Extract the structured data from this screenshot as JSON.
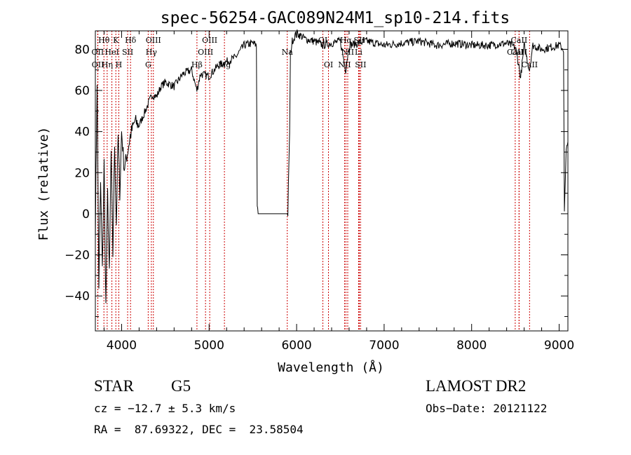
{
  "chart_data": {
    "type": "line",
    "title": "spec-56254-GAC089N24M1_sp10-214.fits",
    "xlabel": "Wavelength (Å)",
    "ylabel": "Flux (relative)",
    "xlim": [
      3700,
      9100
    ],
    "ylim": [
      -57,
      89
    ],
    "xticks": [
      4000,
      5000,
      6000,
      7000,
      8000,
      9000
    ],
    "yticks": [
      -40,
      -20,
      0,
      20,
      40,
      60,
      80
    ],
    "ytick_labels": [
      "−40",
      "−20",
      "0",
      "20",
      "40",
      "60",
      "80"
    ],
    "grid": false,
    "series": [
      {
        "color": "#000000",
        "x": [
          3700,
          3720,
          3740,
          3760,
          3780,
          3800,
          3820,
          3840,
          3860,
          3880,
          3900,
          3920,
          3940,
          3960,
          3980,
          4000,
          4030,
          4060,
          4100,
          4150,
          4200,
          4250,
          4300,
          4350,
          4400,
          4450,
          4500,
          4600,
          4700,
          4800,
          4860,
          4900,
          5000,
          5100,
          5200,
          5300,
          5400,
          5500,
          5540,
          5550,
          5560,
          5580,
          5700,
          5800,
          5900,
          5920,
          5930,
          5950,
          6000,
          6100,
          6200,
          6300,
          6400,
          6500,
          6560,
          6600,
          6700,
          6800,
          6900,
          7000,
          7200,
          7400,
          7600,
          7800,
          8000,
          8200,
          8400,
          8500,
          8540,
          8560,
          8600,
          8660,
          8700,
          8800,
          8900,
          9000,
          9050,
          9060,
          9080,
          9100
        ],
        "y": [
          -10,
          65,
          -35,
          15,
          -28,
          25,
          -45,
          10,
          -30,
          30,
          -20,
          34,
          -5,
          38,
          10,
          40,
          22,
          28,
          38,
          45,
          43,
          48,
          53,
          58,
          57,
          62,
          64,
          62,
          68,
          70,
          60,
          68,
          67,
          72,
          74,
          76,
          82,
          83,
          82,
          5,
          0,
          0,
          0,
          0,
          0,
          40,
          78,
          84,
          88,
          85,
          84,
          82,
          83,
          84,
          70,
          82,
          83,
          84,
          83,
          82,
          83,
          84,
          82,
          83,
          82,
          82,
          83,
          81,
          72,
          66,
          82,
          70,
          82,
          80,
          81,
          82,
          80,
          0,
          30,
          35
        ]
      }
    ],
    "line_ids": [
      {
        "label": "Hθ",
        "x": 3798,
        "row": 0
      },
      {
        "label": "K",
        "x": 3934,
        "row": 0
      },
      {
        "label": "Hδ",
        "x": 4102,
        "row": 0
      },
      {
        "label": "OIII",
        "x": 4363,
        "row": 0
      },
      {
        "label": "OIII",
        "x": 5007,
        "row": 0
      },
      {
        "label": "OI",
        "x": 6300,
        "row": 0
      },
      {
        "label": "Hα",
        "x": 6563,
        "row": 0
      },
      {
        "label": "SII",
        "x": 6717,
        "row": 0
      },
      {
        "label": "CaII",
        "x": 8542,
        "row": 0
      },
      {
        "label": "OII",
        "x": 3727,
        "row": 1
      },
      {
        "label": "HeI",
        "x": 3889,
        "row": 1
      },
      {
        "label": "SII",
        "x": 4069,
        "row": 1
      },
      {
        "label": "Hγ",
        "x": 4340,
        "row": 1
      },
      {
        "label": "OIII",
        "x": 4959,
        "row": 1
      },
      {
        "label": "Na",
        "x": 5893,
        "row": 1
      },
      {
        "label": "NII",
        "x": 6584,
        "row": 1
      },
      {
        "label": "Li",
        "x": 6708,
        "row": 1
      },
      {
        "label": "CaII",
        "x": 8498,
        "row": 1
      },
      {
        "label": "CaII",
        "x": 8542,
        "row": 1
      },
      {
        "label": "OII",
        "x": 3729,
        "row": 2
      },
      {
        "label": "Hη",
        "x": 3835,
        "row": 2
      },
      {
        "label": "H",
        "x": 3968,
        "row": 2
      },
      {
        "label": "G",
        "x": 4304,
        "row": 2
      },
      {
        "label": "Hβ",
        "x": 4861,
        "row": 2
      },
      {
        "label": "Mg",
        "x": 5175,
        "row": 2
      },
      {
        "label": "OI",
        "x": 6364,
        "row": 2
      },
      {
        "label": "NII",
        "x": 6548,
        "row": 2
      },
      {
        "label": "SII",
        "x": 6731,
        "row": 2
      },
      {
        "label": "CaII",
        "x": 8662,
        "row": 2
      }
    ]
  },
  "info": {
    "object_type": "STAR",
    "subclass": "G5",
    "cz": "cz = −12.7 ± 5.3 km/s",
    "coords": "RA =  87.69322, DEC =  23.58504",
    "survey": "LAMOST DR2",
    "obs_date": "Obs−Date: 20121122"
  }
}
